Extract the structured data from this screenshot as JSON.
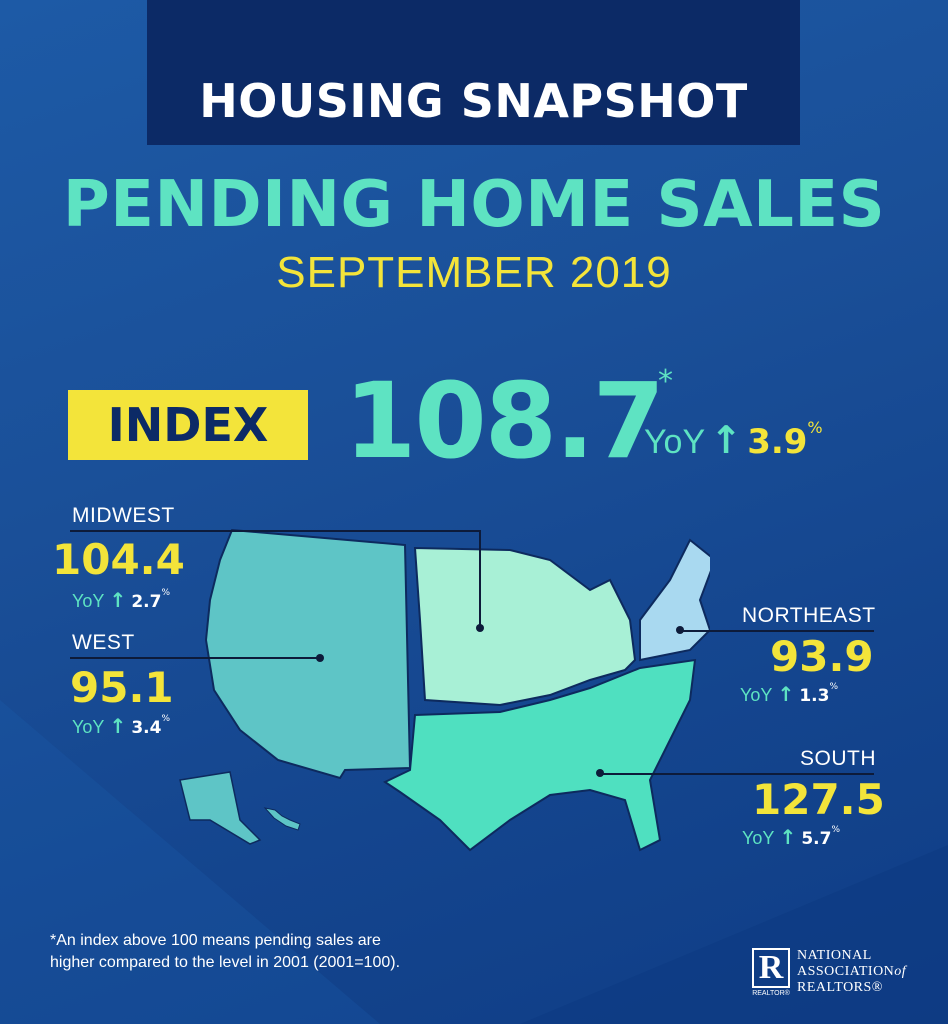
{
  "header": {
    "banner_title": "HOUSING SNAPSHOT",
    "title": "PENDING HOME SALES",
    "subtitle": "SEPTEMBER 2019"
  },
  "index": {
    "badge_label": "INDEX",
    "value": "108.7",
    "footnote_marker": "*",
    "yoy_label": "YoY",
    "yoy_arrow": "↑",
    "yoy_value": "3.9",
    "yoy_unit": "%"
  },
  "regions": {
    "midwest": {
      "label": "MIDWEST",
      "value": "104.4",
      "yoy_label": "YoY",
      "arrow": "↑",
      "yoy_value": "2.7",
      "unit": "%"
    },
    "west": {
      "label": "WEST",
      "value": "95.1",
      "yoy_label": "YoY",
      "arrow": "↑",
      "yoy_value": "3.4",
      "unit": "%"
    },
    "northeast": {
      "label": "NORTHEAST",
      "value": "93.9",
      "yoy_label": "YoY",
      "arrow": "↑",
      "yoy_value": "1.3",
      "unit": "%"
    },
    "south": {
      "label": "SOUTH",
      "value": "127.5",
      "yoy_label": "YoY",
      "arrow": "↑",
      "yoy_value": "5.7",
      "unit": "%"
    }
  },
  "footnote": {
    "line1": "*An index above 100 means pending sales are",
    "line2": "higher compared to the level in 2001 (2001=100)."
  },
  "logo": {
    "mark": "R",
    "mark_sub": "REALTOR®",
    "line1": "NATIONAL",
    "line2": "ASSOCIATION",
    "line2_suffix": "of",
    "line3": "REALTORS®"
  },
  "colors": {
    "background": "#1a4f98",
    "banner": "#0c2a66",
    "teal": "#5ee3c2",
    "yellow": "#f3e43a",
    "west_region": "#5ec5c6",
    "midwest_region": "#a8f0d6",
    "northeast_region": "#a9d9f0",
    "south_region": "#4fe0c0"
  }
}
